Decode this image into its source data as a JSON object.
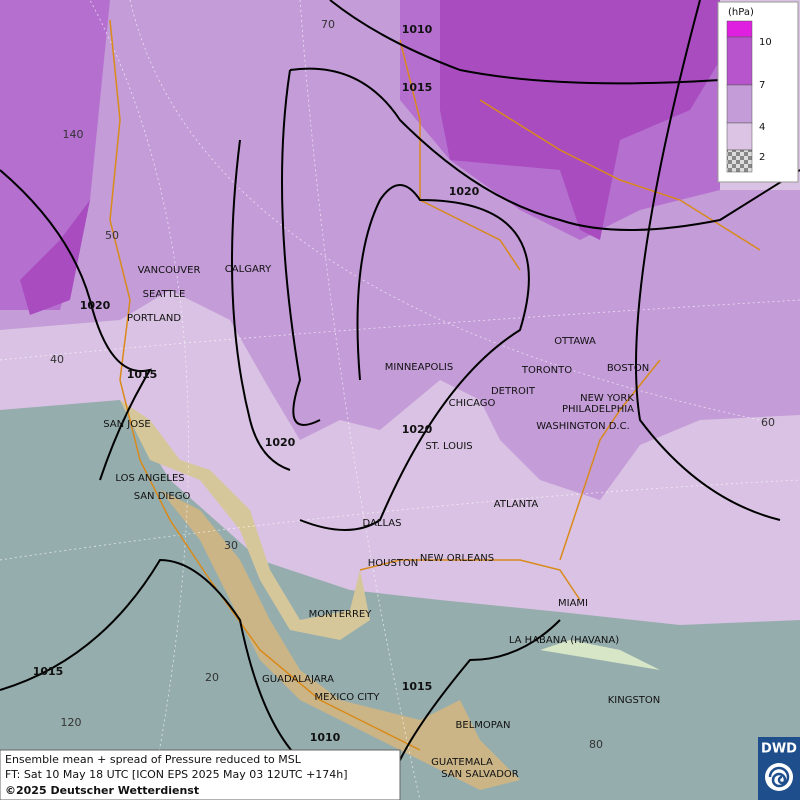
{
  "legend": {
    "unit": "(hPa)",
    "labels": [
      "10",
      "7",
      "4",
      "2"
    ]
  },
  "cities": [
    "VANCOUVER",
    "CALGARY",
    "SEATTLE",
    "PORTLAND",
    "MINNEAPOLIS",
    "TORONTO",
    "OTTAWA",
    "BOSTON",
    "DETROIT",
    "CHICAGO",
    "NEW YORK",
    "PHILADELPHIA",
    "WASHINGTON D.C.",
    "ST. LOUIS",
    "SAN JOSE",
    "LOS ANGELES",
    "SAN DIEGO",
    "DALLAS",
    "ATLANTA",
    "HOUSTON",
    "NEW ORLEANS",
    "MIAMI",
    "MONTERREY",
    "LA HABANA (HAVANA)",
    "GUADALAJARA",
    "MEXICO CITY",
    "KINGSTON",
    "BELMOPAN",
    "GUATEMALA",
    "SAN SALVADOR"
  ],
  "isobar_labels": [
    "1010",
    "1015",
    "1020",
    "1020",
    "1015",
    "1020",
    "1020",
    "1015",
    "1015",
    "1010"
  ],
  "grid_labels": [
    "70",
    "140",
    "50",
    "40",
    "60",
    "30",
    "20",
    "120",
    "80"
  ],
  "footer": {
    "line1": "Ensemble mean + spread of Pressure reduced to MSL",
    "line2": "FT: Sat 10 May 18 UTC [ICON EPS 2025 May 03 12UTC +174h]",
    "line3": "©2025 Deutscher Wetterdienst"
  },
  "logo": "DWD"
}
